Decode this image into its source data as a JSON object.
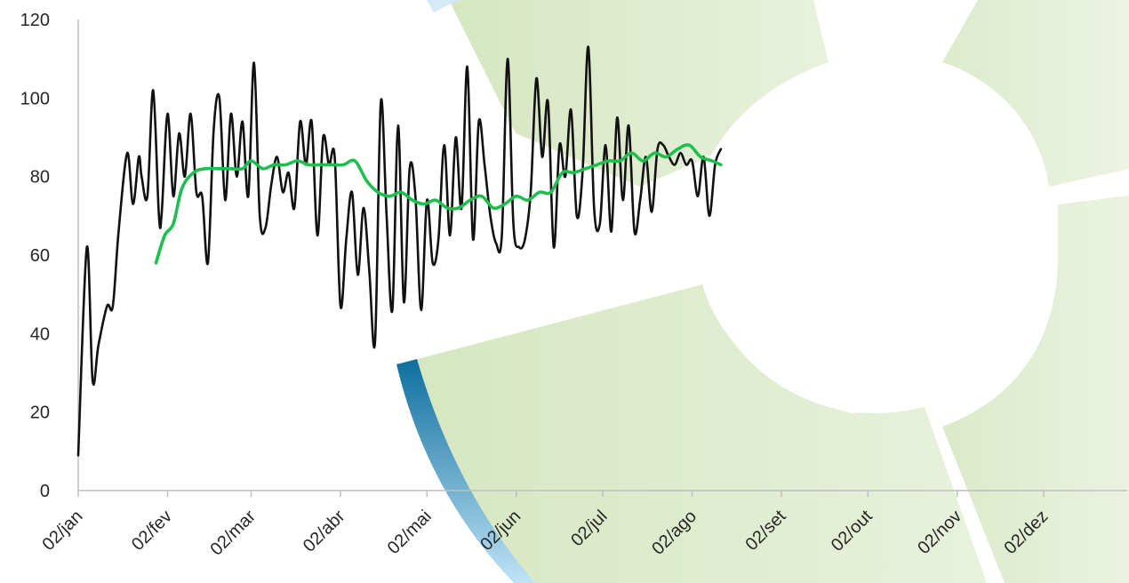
{
  "colors": {
    "background": "#ffffff",
    "decor_green": "#d9e8c4",
    "decor_blue": "#1a7fb3",
    "daily_line": "#111111",
    "average_line": "#1fbf4f",
    "axis": "#bfbfbf"
  },
  "chart_data": {
    "type": "line",
    "title": "",
    "xlabel": "",
    "ylabel": "",
    "ylim": [
      0,
      120
    ],
    "yticks": [
      "0",
      "20",
      "40",
      "60",
      "80",
      "100",
      "120"
    ],
    "x_ticks": [
      "02/jan",
      "02/fev",
      "02/mar",
      "02/abr",
      "02/mai",
      "02/jun",
      "02/jul",
      "02/ago",
      "02/set",
      "02/out",
      "02/nov",
      "02/dez"
    ],
    "x_range": [
      "2020-01-02",
      "2020-12-31"
    ],
    "grid": false,
    "legend": "none",
    "series": [
      {
        "x": [
          "2020-01-02",
          "2020-01-05",
          "2020-01-07",
          "2020-01-09",
          "2020-01-12",
          "2020-01-14",
          "2020-01-16",
          "2020-01-19",
          "2020-01-21",
          "2020-01-23",
          "2020-01-24",
          "2020-01-26",
          "2020-01-28",
          "2020-01-30",
          "2020-01-31",
          "2020-02-02",
          "2020-02-04",
          "2020-02-06",
          "2020-02-08",
          "2020-02-10",
          "2020-02-12",
          "2020-02-14",
          "2020-02-16",
          "2020-02-18",
          "2020-02-20",
          "2020-02-22",
          "2020-02-24",
          "2020-02-26",
          "2020-02-28",
          "2020-03-01",
          "2020-03-03",
          "2020-03-05",
          "2020-03-07",
          "2020-03-09",
          "2020-03-11",
          "2020-03-13",
          "2020-03-15",
          "2020-03-17",
          "2020-03-19",
          "2020-03-21",
          "2020-03-23",
          "2020-03-25",
          "2020-03-27",
          "2020-03-29",
          "2020-03-31",
          "2020-04-02",
          "2020-04-04",
          "2020-04-06",
          "2020-04-08",
          "2020-04-10",
          "2020-04-12",
          "2020-04-14",
          "2020-04-16",
          "2020-04-18",
          "2020-04-20",
          "2020-04-22",
          "2020-04-24",
          "2020-04-26",
          "2020-04-28",
          "2020-04-30",
          "2020-05-02",
          "2020-05-04",
          "2020-05-06",
          "2020-05-08",
          "2020-05-10",
          "2020-05-12",
          "2020-05-14",
          "2020-05-16",
          "2020-05-18",
          "2020-05-20",
          "2020-05-22",
          "2020-05-24",
          "2020-05-26",
          "2020-05-28",
          "2020-05-30",
          "2020-06-01",
          "2020-06-03",
          "2020-06-05",
          "2020-06-07",
          "2020-06-09",
          "2020-06-11",
          "2020-06-13",
          "2020-06-15",
          "2020-06-17",
          "2020-06-19",
          "2020-06-21",
          "2020-06-23",
          "2020-06-25",
          "2020-06-27",
          "2020-06-29",
          "2020-07-01",
          "2020-07-03",
          "2020-07-05",
          "2020-07-07",
          "2020-07-09",
          "2020-07-11",
          "2020-07-13",
          "2020-07-15",
          "2020-07-17",
          "2020-07-19",
          "2020-07-21",
          "2020-07-23",
          "2020-07-25",
          "2020-07-27",
          "2020-07-29",
          "2020-07-31",
          "2020-08-02",
          "2020-08-04",
          "2020-08-06",
          "2020-08-08",
          "2020-08-10",
          "2020-08-12"
        ],
        "values": [
          9,
          62,
          28,
          37,
          47,
          47,
          66,
          86,
          73,
          85,
          80,
          75,
          102,
          70,
          71,
          96,
          75,
          91,
          80,
          96,
          76,
          75,
          58,
          92,
          100,
          74,
          96,
          80,
          94,
          75,
          109,
          70,
          67,
          78,
          85,
          76,
          81,
          72,
          94,
          83,
          94,
          65,
          90,
          83,
          85,
          47,
          64,
          76,
          55,
          72,
          56,
          38,
          99,
          70,
          46,
          93,
          48,
          82,
          75,
          46,
          74,
          58,
          64,
          88,
          65,
          90,
          72,
          108,
          64,
          94,
          83,
          70,
          63,
          65,
          110,
          68,
          62,
          64,
          76,
          105,
          85,
          99,
          62,
          88,
          80,
          97,
          70,
          81,
          113,
          72,
          68,
          88,
          66,
          95,
          74,
          93,
          66,
          74,
          85,
          71,
          87,
          88,
          85,
          83,
          86,
          83,
          84,
          75,
          85,
          70,
          83,
          87
        ]
      },
      {
        "x": [
          "2020-01-29",
          "2020-02-01",
          "2020-02-04",
          "2020-02-07",
          "2020-02-11",
          "2020-02-15",
          "2020-02-19",
          "2020-02-24",
          "2020-02-28",
          "2020-03-02",
          "2020-03-06",
          "2020-03-10",
          "2020-03-14",
          "2020-03-18",
          "2020-03-22",
          "2020-03-26",
          "2020-03-30",
          "2020-04-03",
          "2020-04-07",
          "2020-04-11",
          "2020-04-15",
          "2020-04-19",
          "2020-04-23",
          "2020-04-27",
          "2020-05-01",
          "2020-05-05",
          "2020-05-09",
          "2020-05-13",
          "2020-05-17",
          "2020-05-21",
          "2020-05-25",
          "2020-05-29",
          "2020-06-02",
          "2020-06-06",
          "2020-06-10",
          "2020-06-14",
          "2020-06-18",
          "2020-06-22",
          "2020-06-26",
          "2020-06-30",
          "2020-07-04",
          "2020-07-08",
          "2020-07-12",
          "2020-07-16",
          "2020-07-20",
          "2020-07-24",
          "2020-07-28",
          "2020-08-01",
          "2020-08-05",
          "2020-08-09",
          "2020-08-12"
        ],
        "values": [
          58,
          65,
          68,
          77,
          81,
          82,
          82,
          82,
          82,
          84,
          82,
          83,
          83,
          84,
          83,
          83,
          83,
          83,
          84,
          79,
          76,
          75,
          76,
          74,
          73,
          74,
          72,
          72,
          74,
          75,
          72,
          73,
          75,
          74,
          76,
          76,
          81,
          81,
          82,
          83,
          84,
          84,
          86,
          84,
          86,
          85,
          87,
          88,
          85,
          84,
          83
        ]
      }
    ]
  }
}
